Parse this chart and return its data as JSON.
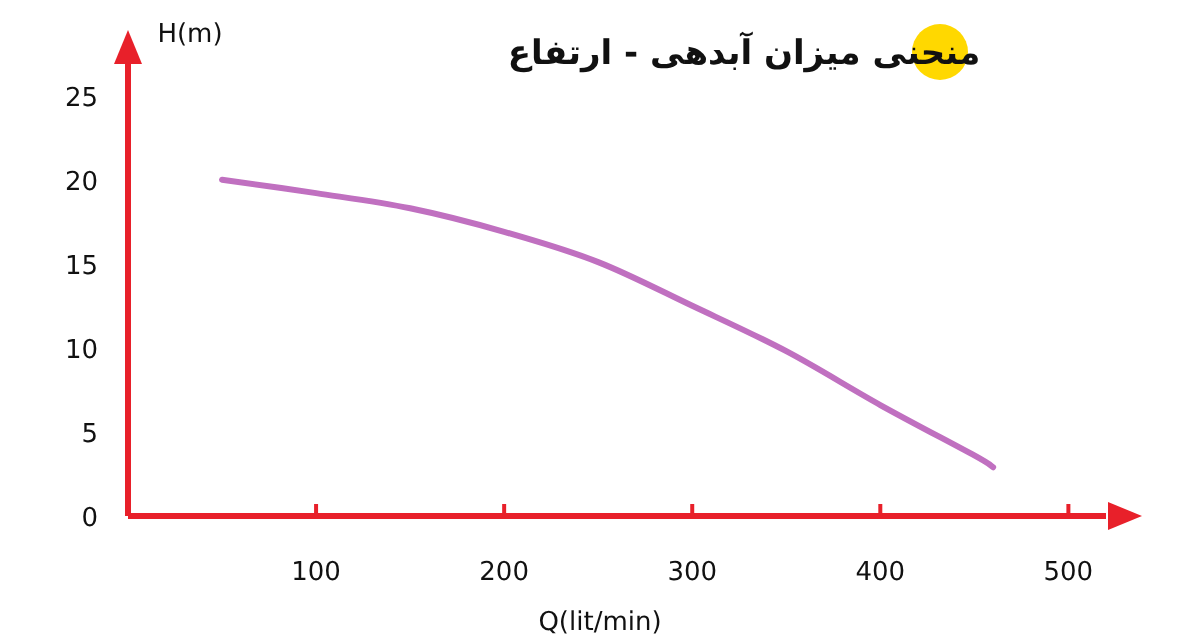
{
  "chart_data": {
    "type": "line",
    "title": "منحنی میزان آبدهی - ارتفاع",
    "xlabel": "Q(lit/min)",
    "ylabel": "H(m)",
    "x": [
      50,
      100,
      150,
      200,
      250,
      300,
      350,
      400,
      450,
      460
    ],
    "values": [
      20,
      19.2,
      18.3,
      16.9,
      15.1,
      12.5,
      9.8,
      6.6,
      3.6,
      2.9
    ],
    "color": "#c070c0",
    "xlim": [
      0,
      520
    ],
    "ylim": [
      0,
      27
    ],
    "xticks": [
      100,
      200,
      300,
      400,
      500
    ],
    "yticks": [
      0,
      5,
      10,
      15,
      20,
      25
    ]
  }
}
